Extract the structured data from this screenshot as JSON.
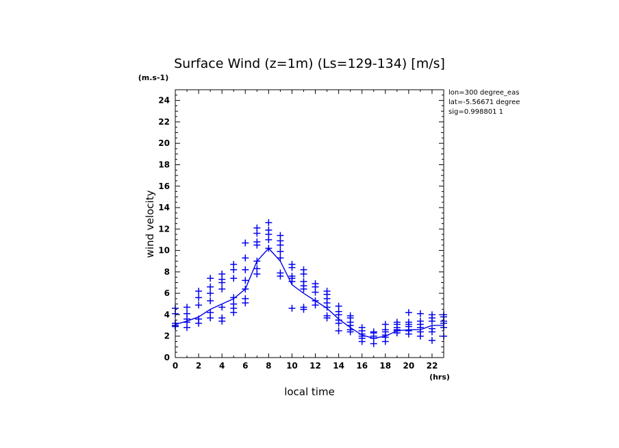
{
  "chart_data": {
    "type": "line",
    "title": "Surface Wind (z=1m) (Ls=129-134) [m/s]",
    "y_unit": "(m.s-1)",
    "ylabel": "wind velocity",
    "xlabel": "local time",
    "x_unit": "(hrs)",
    "info": [
      "lon=300 degree_eas",
      "lat=-5.56671 degree",
      "sig=0.998801 1"
    ],
    "xlim": [
      0,
      23
    ],
    "ylim": [
      0,
      25
    ],
    "x_ticks": [
      0,
      2,
      4,
      6,
      8,
      10,
      12,
      14,
      16,
      18,
      20,
      22
    ],
    "y_ticks": [
      0,
      2,
      4,
      6,
      8,
      10,
      12,
      14,
      16,
      18,
      20,
      22,
      24
    ],
    "color": "#0000ee",
    "series": [
      {
        "kind": "line",
        "x": [
          0,
          1,
          2,
          3,
          4,
          5,
          6,
          7,
          8,
          9,
          10,
          11,
          12,
          13,
          14,
          15,
          16,
          17,
          18,
          19,
          20,
          21,
          22,
          23
        ],
        "values": [
          3.1,
          3.4,
          3.8,
          4.5,
          5.0,
          5.5,
          6.4,
          9.0,
          10.2,
          9.0,
          6.8,
          6.0,
          5.3,
          4.6,
          3.6,
          2.8,
          2.1,
          1.8,
          2.0,
          2.5,
          2.6,
          2.6,
          3.0,
          3.0
        ]
      },
      {
        "kind": "scatter",
        "marker": "+",
        "points": [
          [
            0,
            3.0
          ],
          [
            0,
            3.2
          ],
          [
            0,
            4.1
          ],
          [
            0,
            4.6
          ],
          [
            0,
            2.9
          ],
          [
            1,
            2.8
          ],
          [
            1,
            3.3
          ],
          [
            1,
            3.6
          ],
          [
            1,
            4.1
          ],
          [
            1,
            4.7
          ],
          [
            2,
            3.2
          ],
          [
            2,
            3.6
          ],
          [
            2,
            4.9
          ],
          [
            2,
            5.6
          ],
          [
            2,
            6.2
          ],
          [
            3,
            3.7
          ],
          [
            3,
            4.2
          ],
          [
            3,
            5.3
          ],
          [
            3,
            6.0
          ],
          [
            3,
            6.6
          ],
          [
            3,
            7.4
          ],
          [
            4,
            3.4
          ],
          [
            4,
            3.7
          ],
          [
            4,
            4.7
          ],
          [
            4,
            6.4
          ],
          [
            4,
            7.0
          ],
          [
            4,
            7.3
          ],
          [
            4,
            7.8
          ],
          [
            5,
            4.2
          ],
          [
            5,
            4.6
          ],
          [
            5,
            5.0
          ],
          [
            5,
            5.6
          ],
          [
            5,
            7.4
          ],
          [
            5,
            8.2
          ],
          [
            5,
            8.7
          ],
          [
            6,
            5.1
          ],
          [
            6,
            5.5
          ],
          [
            6,
            6.4
          ],
          [
            6,
            7.2
          ],
          [
            6,
            8.2
          ],
          [
            6,
            9.3
          ],
          [
            6,
            10.7
          ],
          [
            7,
            7.8
          ],
          [
            7,
            8.3
          ],
          [
            7,
            9.0
          ],
          [
            7,
            10.5
          ],
          [
            7,
            10.8
          ],
          [
            7,
            11.6
          ],
          [
            7,
            12.1
          ],
          [
            8,
            10.2
          ],
          [
            8,
            11.0
          ],
          [
            8,
            11.5
          ],
          [
            8,
            11.9
          ],
          [
            8,
            12.6
          ],
          [
            9,
            7.6
          ],
          [
            9,
            7.9
          ],
          [
            9,
            9.3
          ],
          [
            9,
            9.9
          ],
          [
            9,
            10.5
          ],
          [
            9,
            10.9
          ],
          [
            9,
            11.4
          ],
          [
            10,
            4.6
          ],
          [
            10,
            7.1
          ],
          [
            10,
            7.4
          ],
          [
            10,
            7.6
          ],
          [
            10,
            8.4
          ],
          [
            10,
            8.7
          ],
          [
            11,
            4.5
          ],
          [
            11,
            4.7
          ],
          [
            11,
            6.4
          ],
          [
            11,
            6.7
          ],
          [
            11,
            7.1
          ],
          [
            11,
            7.8
          ],
          [
            11,
            8.2
          ],
          [
            12,
            4.9
          ],
          [
            12,
            5.3
          ],
          [
            12,
            6.1
          ],
          [
            12,
            6.6
          ],
          [
            12,
            6.9
          ],
          [
            13,
            3.7
          ],
          [
            13,
            3.9
          ],
          [
            13,
            4.7
          ],
          [
            13,
            5.1
          ],
          [
            13,
            5.5
          ],
          [
            13,
            5.9
          ],
          [
            13,
            6.2
          ],
          [
            14,
            2.5
          ],
          [
            14,
            3.2
          ],
          [
            14,
            3.5
          ],
          [
            14,
            4.0
          ],
          [
            14,
            4.3
          ],
          [
            14,
            4.8
          ],
          [
            15,
            2.4
          ],
          [
            15,
            2.6
          ],
          [
            15,
            3.0
          ],
          [
            15,
            3.3
          ],
          [
            15,
            3.7
          ],
          [
            15,
            3.9
          ],
          [
            16,
            1.5
          ],
          [
            16,
            1.8
          ],
          [
            16,
            2.0
          ],
          [
            16,
            2.2
          ],
          [
            16,
            2.5
          ],
          [
            16,
            2.8
          ],
          [
            17,
            1.3
          ],
          [
            17,
            1.8
          ],
          [
            17,
            2.0
          ],
          [
            17,
            2.3
          ],
          [
            17,
            2.4
          ],
          [
            18,
            1.5
          ],
          [
            18,
            1.9
          ],
          [
            18,
            2.1
          ],
          [
            18,
            2.4
          ],
          [
            18,
            2.6
          ],
          [
            18,
            3.1
          ],
          [
            19,
            2.3
          ],
          [
            19,
            2.5
          ],
          [
            19,
            2.6
          ],
          [
            19,
            2.8
          ],
          [
            19,
            3.1
          ],
          [
            19,
            3.3
          ],
          [
            20,
            2.2
          ],
          [
            20,
            2.5
          ],
          [
            20,
            2.9
          ],
          [
            20,
            3.1
          ],
          [
            20,
            3.3
          ],
          [
            20,
            4.2
          ],
          [
            21,
            2.0
          ],
          [
            21,
            2.4
          ],
          [
            21,
            2.8
          ],
          [
            21,
            3.1
          ],
          [
            21,
            3.4
          ],
          [
            21,
            4.1
          ],
          [
            22,
            1.6
          ],
          [
            22,
            2.4
          ],
          [
            22,
            2.7
          ],
          [
            22,
            3.4
          ],
          [
            22,
            3.7
          ],
          [
            22,
            4.0
          ],
          [
            23,
            2.0
          ],
          [
            23,
            2.8
          ],
          [
            23,
            3.2
          ],
          [
            23,
            3.4
          ],
          [
            23,
            3.8
          ],
          [
            23,
            4.0
          ]
        ]
      }
    ]
  }
}
